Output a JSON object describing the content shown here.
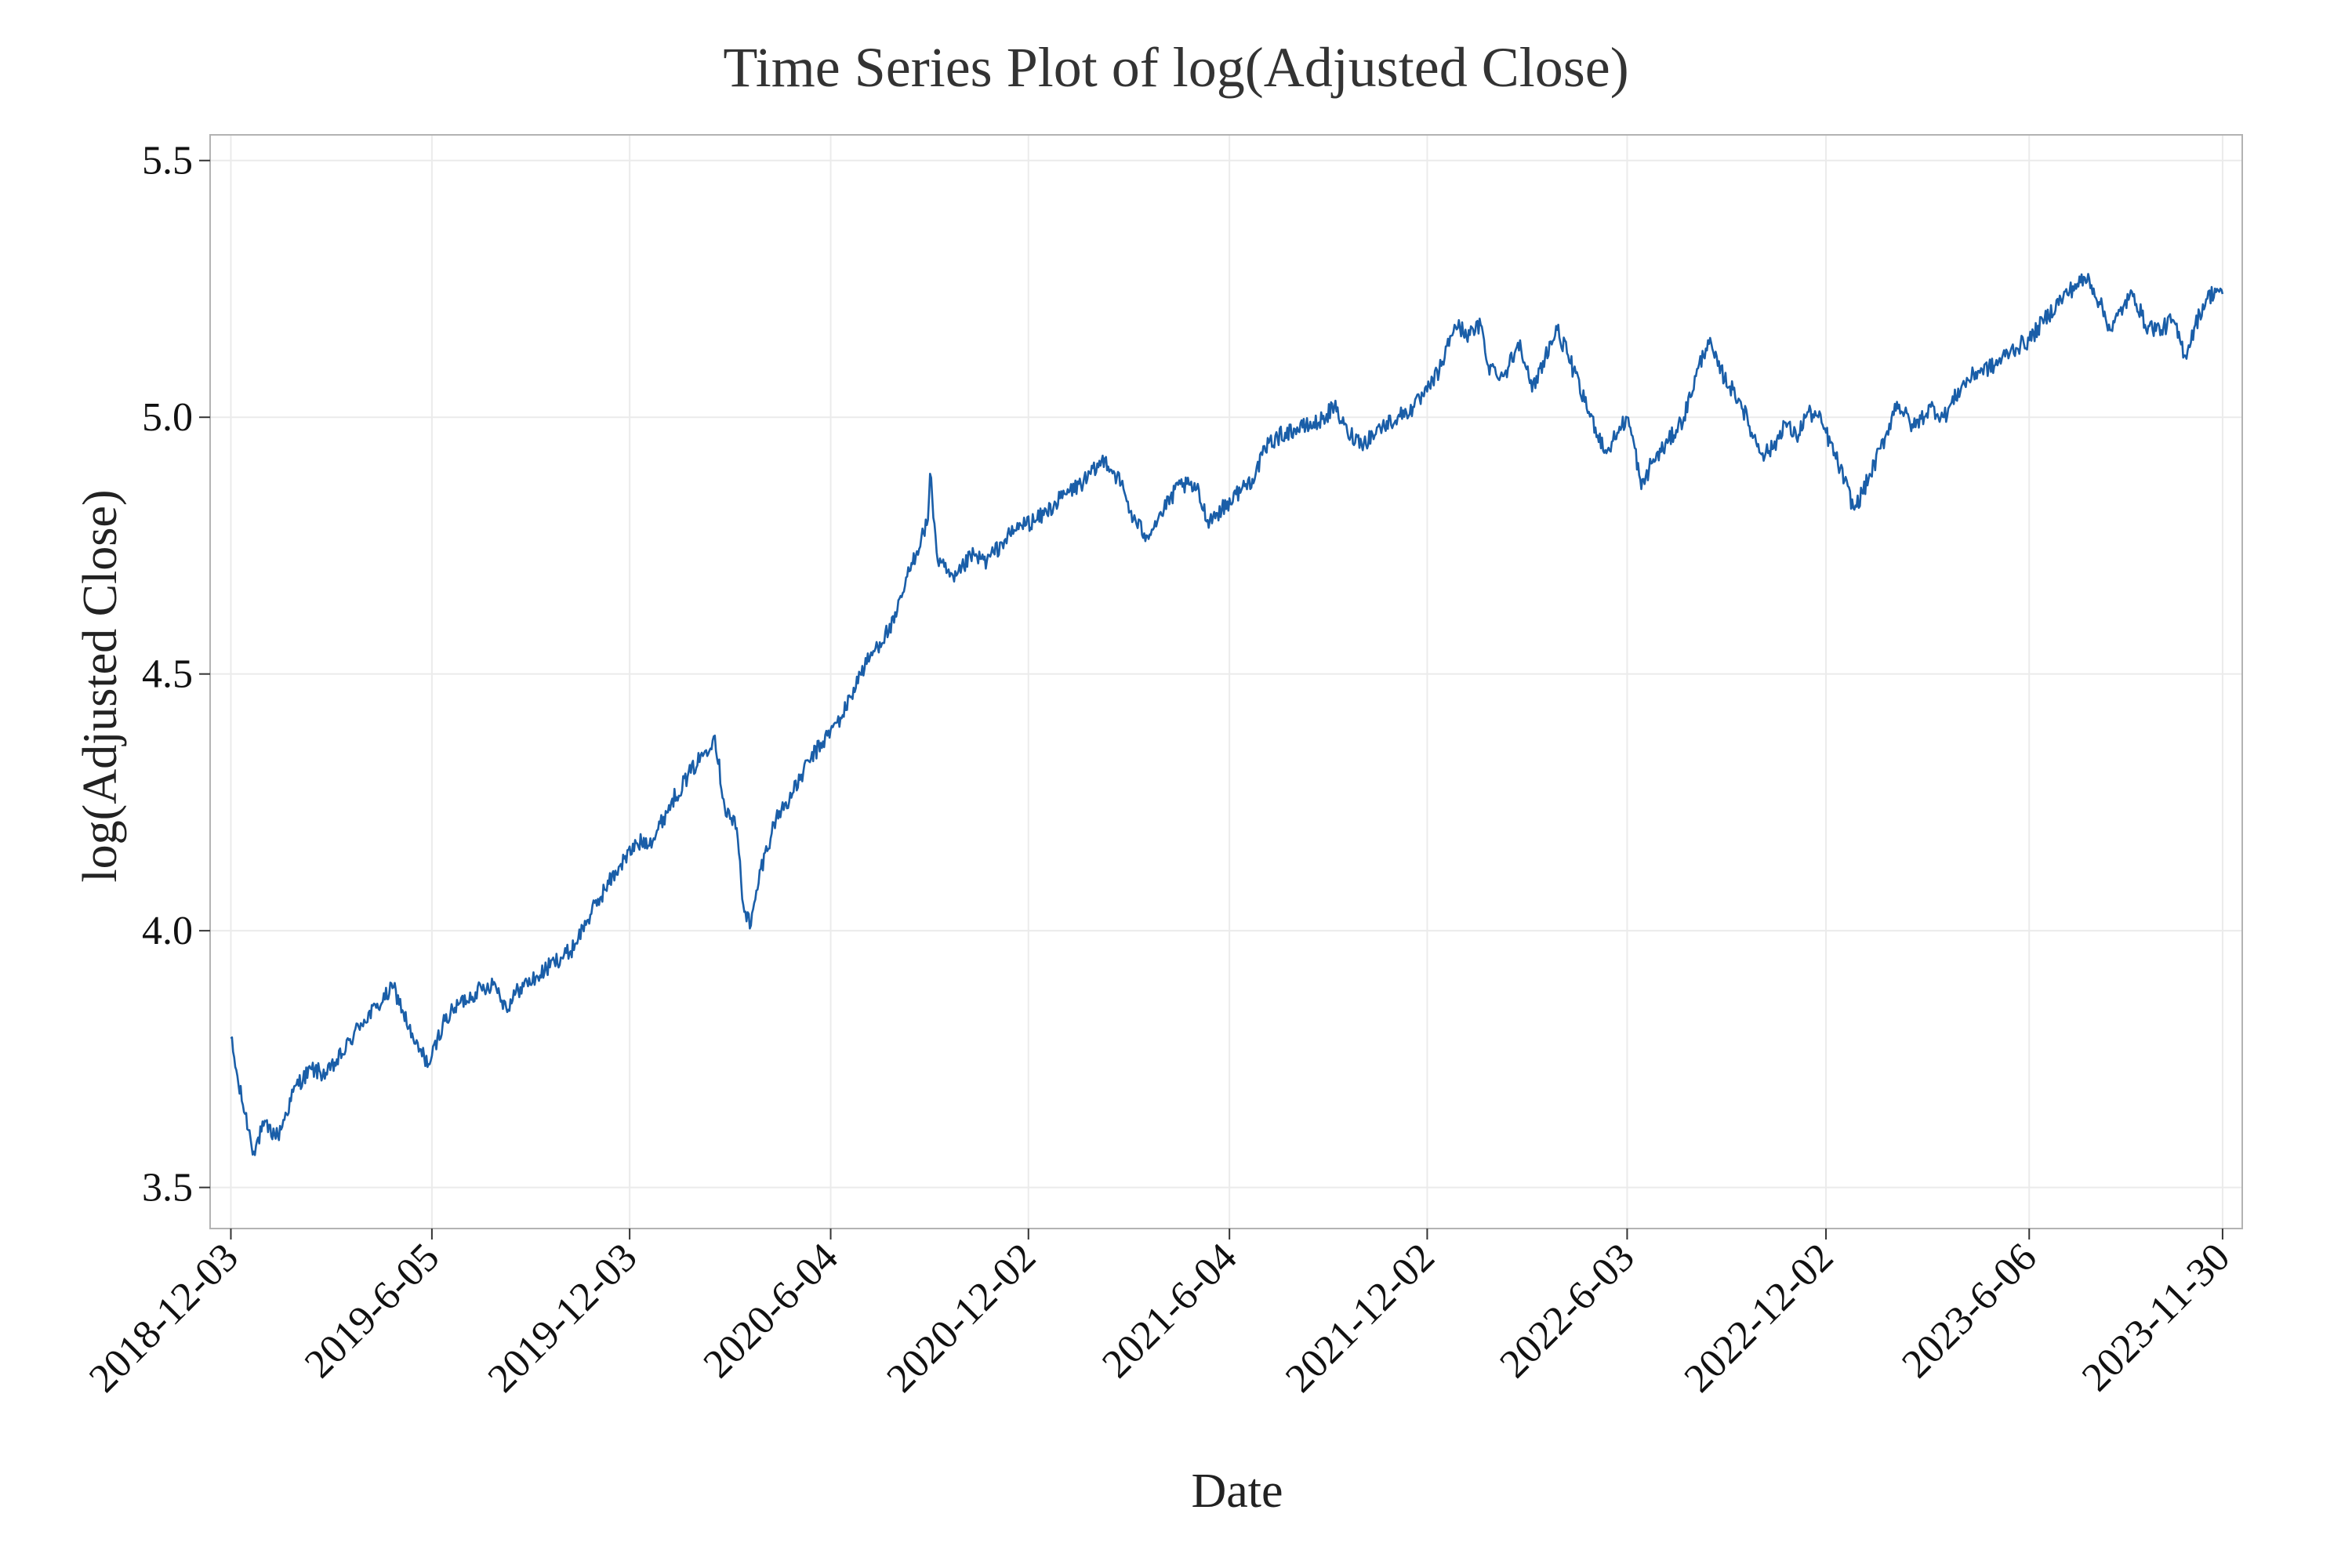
{
  "chart_data": {
    "type": "line",
    "title": "Time Series Plot of log(Adjusted Close)",
    "xlabel": "Date",
    "ylabel": "log(Adjusted Close)",
    "x_axis_type": "date",
    "xlim": [
      "2018-11-14",
      "2023-12-18"
    ],
    "ylim": [
      3.42,
      5.55
    ],
    "x_ticks": [
      "2018-12-03",
      "2019-6-05",
      "2019-12-03",
      "2020-6-04",
      "2020-12-02",
      "2021-6-04",
      "2021-12-02",
      "2022-6-03",
      "2022-12-02",
      "2023-6-06",
      "2023-11-30"
    ],
    "y_ticks": [
      3.5,
      4.0,
      4.5,
      5.0,
      5.5
    ],
    "y_tick_labels": [
      "3.5",
      "4.0",
      "4.5",
      "5.0",
      "5.5"
    ],
    "grid": true,
    "legend": "none",
    "colors": {
      "line": "#1a5ea8",
      "grid": "#ebebeb",
      "frame": "#b3b3b3",
      "text": "#111111"
    },
    "series": [
      {
        "points": [
          [
            "2018-12-03",
            3.79
          ],
          [
            "2018-12-10",
            3.7
          ],
          [
            "2018-12-24",
            3.57
          ],
          [
            "2019-01-02",
            3.62
          ],
          [
            "2019-01-15",
            3.6
          ],
          [
            "2019-02-01",
            3.7
          ],
          [
            "2019-02-15",
            3.73
          ],
          [
            "2019-03-01",
            3.72
          ],
          [
            "2019-03-15",
            3.76
          ],
          [
            "2019-04-01",
            3.82
          ],
          [
            "2019-04-15",
            3.85
          ],
          [
            "2019-05-01",
            3.89
          ],
          [
            "2019-05-10",
            3.84
          ],
          [
            "2019-05-20",
            3.78
          ],
          [
            "2019-06-03",
            3.74
          ],
          [
            "2019-06-15",
            3.82
          ],
          [
            "2019-07-01",
            3.86
          ],
          [
            "2019-07-15",
            3.88
          ],
          [
            "2019-08-01",
            3.9
          ],
          [
            "2019-08-12",
            3.85
          ],
          [
            "2019-08-25",
            3.89
          ],
          [
            "2019-09-10",
            3.91
          ],
          [
            "2019-09-25",
            3.94
          ],
          [
            "2019-10-10",
            3.96
          ],
          [
            "2019-10-25",
            4.02
          ],
          [
            "2019-11-10",
            4.08
          ],
          [
            "2019-11-25",
            4.13
          ],
          [
            "2019-12-10",
            4.17
          ],
          [
            "2019-12-25",
            4.18
          ],
          [
            "2020-01-10",
            4.25
          ],
          [
            "2020-01-25",
            4.3
          ],
          [
            "2020-02-10",
            4.35
          ],
          [
            "2020-02-19",
            4.38
          ],
          [
            "2020-02-28",
            4.24
          ],
          [
            "2020-03-10",
            4.2
          ],
          [
            "2020-03-16",
            4.05
          ],
          [
            "2020-03-23",
            4.01
          ],
          [
            "2020-04-01",
            4.12
          ],
          [
            "2020-04-15",
            4.22
          ],
          [
            "2020-05-01",
            4.27
          ],
          [
            "2020-05-15",
            4.33
          ],
          [
            "2020-06-01",
            4.38
          ],
          [
            "2020-06-15",
            4.42
          ],
          [
            "2020-07-01",
            4.5
          ],
          [
            "2020-07-15",
            4.55
          ],
          [
            "2020-08-01",
            4.6
          ],
          [
            "2020-08-15",
            4.7
          ],
          [
            "2020-09-01",
            4.8
          ],
          [
            "2020-09-03",
            4.89
          ],
          [
            "2020-09-10",
            4.72
          ],
          [
            "2020-09-25",
            4.68
          ],
          [
            "2020-10-10",
            4.73
          ],
          [
            "2020-10-25",
            4.72
          ],
          [
            "2020-11-10",
            4.76
          ],
          [
            "2020-11-25",
            4.79
          ],
          [
            "2020-12-10",
            4.8
          ],
          [
            "2021-01-05",
            4.85
          ],
          [
            "2021-01-25",
            4.88
          ],
          [
            "2021-02-10",
            4.92
          ],
          [
            "2021-02-25",
            4.87
          ],
          [
            "2021-03-08",
            4.8
          ],
          [
            "2021-03-20",
            4.77
          ],
          [
            "2021-04-05",
            4.82
          ],
          [
            "2021-04-20",
            4.87
          ],
          [
            "2021-05-05",
            4.86
          ],
          [
            "2021-05-15",
            4.8
          ],
          [
            "2021-05-28",
            4.82
          ],
          [
            "2021-06-10",
            4.85
          ],
          [
            "2021-06-25",
            4.88
          ],
          [
            "2021-07-10",
            4.95
          ],
          [
            "2021-07-25",
            4.97
          ],
          [
            "2021-08-10",
            4.98
          ],
          [
            "2021-08-25",
            4.99
          ],
          [
            "2021-09-08",
            5.02
          ],
          [
            "2021-09-20",
            4.97
          ],
          [
            "2021-10-05",
            4.95
          ],
          [
            "2021-10-20",
            4.98
          ],
          [
            "2021-11-05",
            5.0
          ],
          [
            "2021-11-20",
            5.02
          ],
          [
            "2021-12-02",
            5.05
          ],
          [
            "2021-12-15",
            5.1
          ],
          [
            "2021-12-27",
            5.18
          ],
          [
            "2022-01-10",
            5.16
          ],
          [
            "2022-01-20",
            5.18
          ],
          [
            "2022-01-27",
            5.1
          ],
          [
            "2022-02-10",
            5.08
          ],
          [
            "2022-02-25",
            5.15
          ],
          [
            "2022-03-08",
            5.05
          ],
          [
            "2022-03-20",
            5.12
          ],
          [
            "2022-03-31",
            5.17
          ],
          [
            "2022-04-10",
            5.12
          ],
          [
            "2022-04-25",
            5.03
          ],
          [
            "2022-05-05",
            4.98
          ],
          [
            "2022-05-15",
            4.93
          ],
          [
            "2022-05-25",
            4.97
          ],
          [
            "2022-06-03",
            5.0
          ],
          [
            "2022-06-10",
            4.94
          ],
          [
            "2022-06-16",
            4.86
          ],
          [
            "2022-06-25",
            4.91
          ],
          [
            "2022-07-10",
            4.95
          ],
          [
            "2022-07-25",
            5.0
          ],
          [
            "2022-08-05",
            5.08
          ],
          [
            "2022-08-16",
            5.15
          ],
          [
            "2022-08-25",
            5.1
          ],
          [
            "2022-09-05",
            5.06
          ],
          [
            "2022-09-15",
            5.03
          ],
          [
            "2022-09-25",
            4.97
          ],
          [
            "2022-10-05",
            4.93
          ],
          [
            "2022-10-15",
            4.94
          ],
          [
            "2022-10-25",
            4.99
          ],
          [
            "2022-11-05",
            4.96
          ],
          [
            "2022-11-15",
            5.01
          ],
          [
            "2022-11-25",
            5.0
          ],
          [
            "2022-12-02",
            4.97
          ],
          [
            "2022-12-15",
            4.9
          ],
          [
            "2022-12-28",
            4.82
          ],
          [
            "2023-01-10",
            4.88
          ],
          [
            "2023-01-25",
            4.96
          ],
          [
            "2023-02-05",
            5.03
          ],
          [
            "2023-02-20",
            4.98
          ],
          [
            "2023-03-08",
            5.02
          ],
          [
            "2023-03-20",
            5.0
          ],
          [
            "2023-04-05",
            5.06
          ],
          [
            "2023-04-20",
            5.09
          ],
          [
            "2023-05-05",
            5.1
          ],
          [
            "2023-05-20",
            5.13
          ],
          [
            "2023-06-06",
            5.15
          ],
          [
            "2023-06-20",
            5.19
          ],
          [
            "2023-07-05",
            5.23
          ],
          [
            "2023-07-20",
            5.26
          ],
          [
            "2023-07-31",
            5.27
          ],
          [
            "2023-08-10",
            5.22
          ],
          [
            "2023-08-20",
            5.17
          ],
          [
            "2023-09-01",
            5.22
          ],
          [
            "2023-09-10",
            5.24
          ],
          [
            "2023-09-20",
            5.18
          ],
          [
            "2023-10-05",
            5.17
          ],
          [
            "2023-10-15",
            5.19
          ],
          [
            "2023-10-27",
            5.12
          ],
          [
            "2023-11-05",
            5.18
          ],
          [
            "2023-11-15",
            5.23
          ],
          [
            "2023-11-25",
            5.25
          ],
          [
            "2023-11-30",
            5.24
          ]
        ]
      }
    ]
  }
}
